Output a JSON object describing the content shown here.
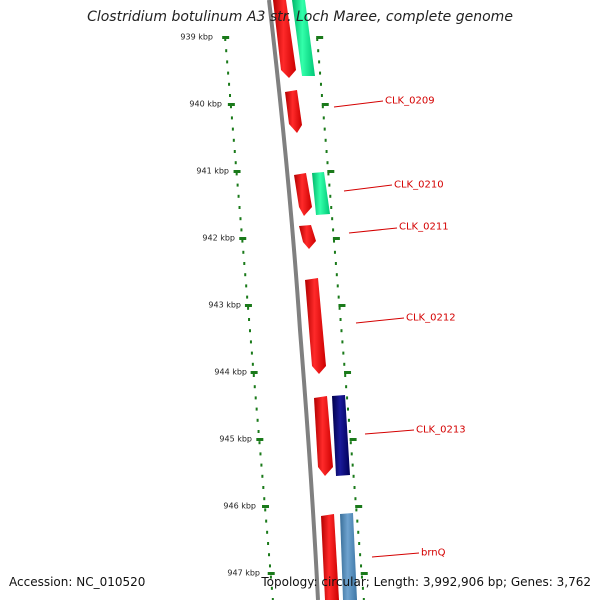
{
  "title": "Clostridium botulinum A3 str. Loch Maree, complete genome",
  "footer": {
    "accession": "Accession: NC_010520",
    "summary": "Topology: circular; Length: 3,992,906 bp; Genes: 3,762"
  },
  "ruler": {
    "ticks": [
      "939 kbp",
      "940 kbp",
      "941 kbp",
      "942 kbp",
      "943 kbp",
      "944 kbp",
      "945 kbp",
      "946 kbp",
      "947 kbp"
    ],
    "color": "#1a7a1a"
  },
  "backbone_color": "#808080",
  "gene_labels": [
    "CLK_0209",
    "CLK_0210",
    "CLK_0211",
    "CLK_0212",
    "CLK_0213",
    "brnQ"
  ],
  "colors": {
    "cds": "#ff0000",
    "green_feature": "#00e68a",
    "navy_feature": "#00006e",
    "steel_feature": "#4682b4",
    "label": "#d40000"
  }
}
